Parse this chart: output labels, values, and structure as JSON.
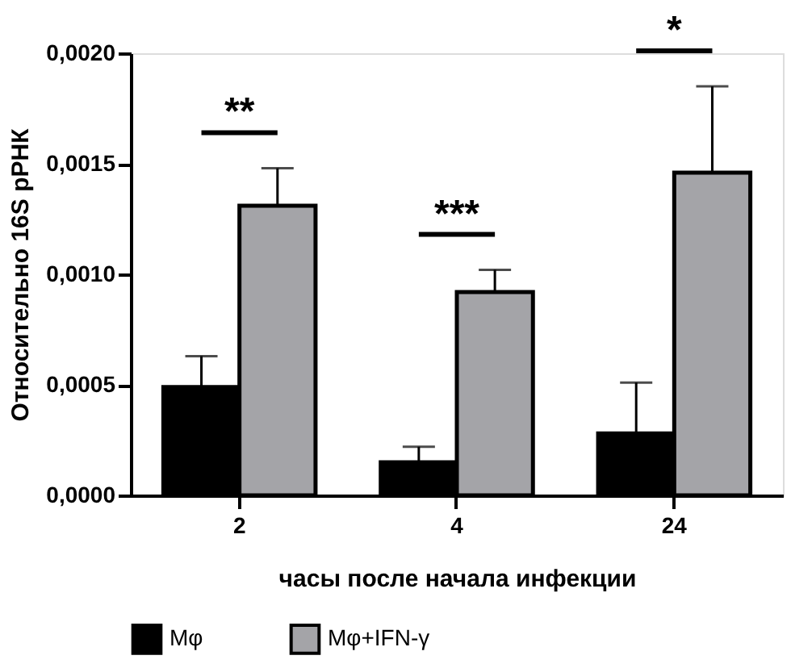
{
  "chart_data": {
    "type": "bar",
    "xlabel": "часы после начала инфекции",
    "ylabel": "Относительно 16S рРНК",
    "categories": [
      "2",
      "4",
      "24"
    ],
    "series": [
      {
        "name": "Mφ",
        "color": "#000000",
        "values": [
          0.00049,
          0.00015,
          0.00028
        ],
        "errors": [
          [
            0.00049,
            0.00063
          ],
          [
            0.00015,
            0.00022
          ],
          [
            0.00028,
            0.00051
          ]
        ]
      },
      {
        "name": "Mφ+IFN-γ",
        "color": "#a4a4a8",
        "values": [
          0.00131,
          0.00092,
          0.00146
        ],
        "errors": [
          [
            0.00131,
            0.00148
          ],
          [
            0.00092,
            0.00102
          ],
          [
            0.00146,
            0.00185
          ]
        ]
      }
    ],
    "ylim": [
      0,
      0.002
    ],
    "yticks": [
      {
        "value": 0,
        "label": "0,0000"
      },
      {
        "value": 0.0005,
        "label": "0,0005"
      },
      {
        "value": 0.001,
        "label": "0,0010"
      },
      {
        "value": 0.0015,
        "label": "0,0015"
      },
      {
        "value": 0.002,
        "label": "0,0020"
      }
    ],
    "annotations": [
      "**",
      "***",
      "*"
    ],
    "grid": false,
    "legend": "bottom"
  }
}
